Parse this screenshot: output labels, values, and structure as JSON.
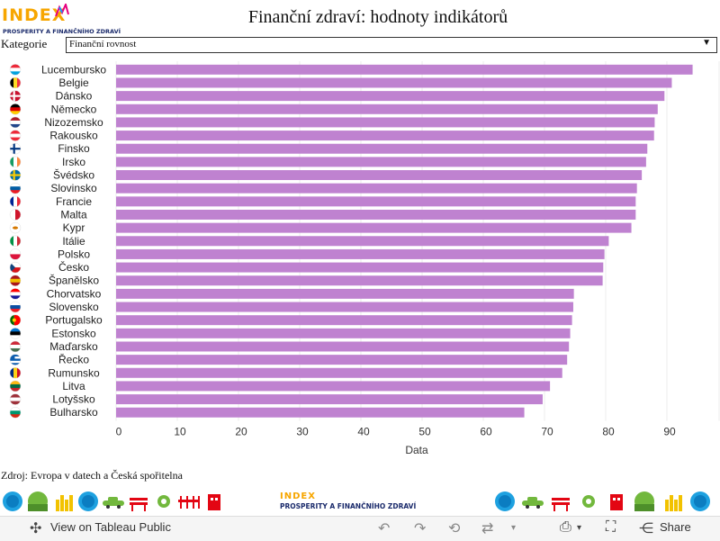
{
  "logo": {
    "word": "INDEX",
    "subtitle": "PROSPERITY A FINANČNÍHO ZDRAVÍ"
  },
  "title": "Finanční zdraví: hodnoty indikátorů",
  "filter": {
    "label": "Kategorie",
    "value": "Finanční rovnost"
  },
  "chart_data": {
    "type": "bar",
    "orientation": "horizontal",
    "title": "",
    "xlabel": "Data",
    "ylabel": "",
    "xlim": [
      0,
      98
    ],
    "ticks": [
      0,
      10,
      20,
      30,
      40,
      50,
      60,
      70,
      80,
      90
    ],
    "grid": true,
    "bar_color": "#bf82d0",
    "categories": [
      "Lucembursko",
      "Belgie",
      "Dánsko",
      "Německo",
      "Nizozemsko",
      "Rakousko",
      "Finsko",
      "Irsko",
      "Švédsko",
      "Slovinsko",
      "Francie",
      "Malta",
      "Kypr",
      "Itálie",
      "Polsko",
      "Česko",
      "Španělsko",
      "Chorvatsko",
      "Slovensko",
      "Portugalsko",
      "Estonsko",
      "Maďarsko",
      "Řecko",
      "Rumunsko",
      "Litva",
      "Lotyšsko",
      "Bulharsko"
    ],
    "values": [
      94.2,
      90.8,
      89.6,
      88.5,
      88.0,
      87.9,
      86.8,
      86.6,
      85.9,
      85.1,
      84.9,
      84.9,
      84.2,
      80.5,
      79.8,
      79.6,
      79.5,
      74.8,
      74.7,
      74.5,
      74.2,
      74.0,
      73.7,
      72.9,
      70.9,
      69.7,
      66.7
    ]
  },
  "flags": [
    {
      "country": "Lucembursko",
      "colors": [
        "#ed2939",
        "#ffffff",
        "#00a1de"
      ],
      "dir": "h"
    },
    {
      "country": "Belgie",
      "colors": [
        "#000000",
        "#fdda24",
        "#ef3340"
      ],
      "dir": "v"
    },
    {
      "country": "Dánsko",
      "colors": [
        "#c8102e",
        "#ffffff"
      ],
      "dir": "cross"
    },
    {
      "country": "Německo",
      "colors": [
        "#000000",
        "#dd0000",
        "#ffce00"
      ],
      "dir": "h"
    },
    {
      "country": "Nizozemsko",
      "colors": [
        "#ae1c28",
        "#ffffff",
        "#21468b"
      ],
      "dir": "h"
    },
    {
      "country": "Rakousko",
      "colors": [
        "#ed2939",
        "#ffffff",
        "#ed2939"
      ],
      "dir": "h"
    },
    {
      "country": "Finsko",
      "colors": [
        "#ffffff",
        "#003580"
      ],
      "dir": "cross"
    },
    {
      "country": "Irsko",
      "colors": [
        "#169b62",
        "#ffffff",
        "#ff883e"
      ],
      "dir": "v"
    },
    {
      "country": "Švédsko",
      "colors": [
        "#006aa7",
        "#fecc00"
      ],
      "dir": "cross"
    },
    {
      "country": "Slovinsko",
      "colors": [
        "#ffffff",
        "#005da4",
        "#ed1c24"
      ],
      "dir": "h"
    },
    {
      "country": "Francie",
      "colors": [
        "#002395",
        "#ffffff",
        "#ed2939"
      ],
      "dir": "v"
    },
    {
      "country": "Malta",
      "colors": [
        "#ffffff",
        "#cf142b"
      ],
      "dir": "v"
    },
    {
      "country": "Kypr",
      "colors": [
        "#ffffff",
        "#d57800"
      ],
      "dir": "dot"
    },
    {
      "country": "Itálie",
      "colors": [
        "#009246",
        "#ffffff",
        "#ce2b37"
      ],
      "dir": "v"
    },
    {
      "country": "Polsko",
      "colors": [
        "#ffffff",
        "#dc143c"
      ],
      "dir": "h"
    },
    {
      "country": "Česko",
      "colors": [
        "#ffffff",
        "#d7141a",
        "#11457e"
      ],
      "dir": "tri"
    },
    {
      "country": "Španělsko",
      "colors": [
        "#aa151b",
        "#f1bf00",
        "#aa151b"
      ],
      "dir": "h"
    },
    {
      "country": "Chorvatsko",
      "colors": [
        "#ff0000",
        "#ffffff",
        "#171796"
      ],
      "dir": "h"
    },
    {
      "country": "Slovensko",
      "colors": [
        "#ffffff",
        "#0b4ea2",
        "#ee1c25"
      ],
      "dir": "h"
    },
    {
      "country": "Portugalsko",
      "colors": [
        "#006600",
        "#ff0000"
      ],
      "dir": "pt"
    },
    {
      "country": "Estonsko",
      "colors": [
        "#0072ce",
        "#000000",
        "#ffffff"
      ],
      "dir": "h"
    },
    {
      "country": "Maďarsko",
      "colors": [
        "#ce2939",
        "#ffffff",
        "#477050"
      ],
      "dir": "h"
    },
    {
      "country": "Řecko",
      "colors": [
        "#0d5eaf",
        "#ffffff"
      ],
      "dir": "stripes"
    },
    {
      "country": "Rumunsko",
      "colors": [
        "#002b7f",
        "#fcd116",
        "#ce1126"
      ],
      "dir": "v"
    },
    {
      "country": "Litva",
      "colors": [
        "#fdb913",
        "#006a44",
        "#c1272d"
      ],
      "dir": "h"
    },
    {
      "country": "Lotyšsko",
      "colors": [
        "#9e3039",
        "#ffffff",
        "#9e3039"
      ],
      "dir": "h"
    },
    {
      "country": "Bulharsko",
      "colors": [
        "#ffffff",
        "#00966e",
        "#d62612"
      ],
      "dir": "h"
    }
  ],
  "source": "Zdroj: Evropa v datech a Česká spořitelna",
  "banner": {
    "logo_word": "INDEX",
    "logo_subtitle": "PROSPERITY A FINANČNÍHO ZDRAVÍ",
    "icons_left": [
      "planet-icon",
      "tree-icon",
      "city-icon",
      "globe-icon",
      "car-icon",
      "bench-icon",
      "gear-icon",
      "fence-icon",
      "building-icon"
    ],
    "icons_right": [
      "globe-icon",
      "car-icon",
      "bench-icon",
      "gear-icon",
      "building-icon",
      "tree-icon",
      "city-icon",
      "globe-icon"
    ]
  },
  "toolbar": {
    "view_label": "View on Tableau Public",
    "share_label": "Share"
  }
}
